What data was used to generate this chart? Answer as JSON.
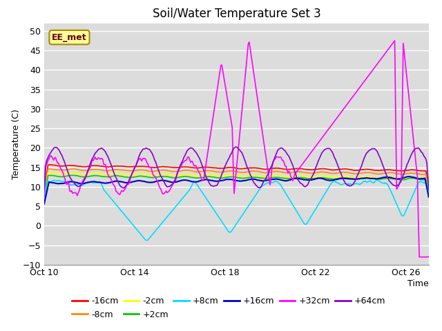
{
  "title": "Soil/Water Temperature Set 3",
  "xlabel": "Time",
  "ylabel": "Temperature (C)",
  "ylim": [
    -10,
    52
  ],
  "yticks": [
    -10,
    -5,
    0,
    5,
    10,
    15,
    20,
    25,
    30,
    35,
    40,
    45,
    50
  ],
  "xlim": [
    0,
    17
  ],
  "xtick_positions": [
    0,
    4,
    8,
    12,
    16
  ],
  "xtick_labels": [
    "Oct 10",
    "Oct 14",
    "Oct 18",
    "Oct 22",
    "Oct 26"
  ],
  "annotation_text": "EE_met",
  "annotation_bg": "#FFFF99",
  "annotation_border": "#AA8800",
  "bg_color": "#DCDCDC",
  "series": {
    "-16cm": {
      "color": "#FF0000",
      "linewidth": 1.2
    },
    "-8cm": {
      "color": "#FF8800",
      "linewidth": 1.2
    },
    "-2cm": {
      "color": "#FFFF00",
      "linewidth": 1.2
    },
    "+2cm": {
      "color": "#00CC00",
      "linewidth": 1.2
    },
    "+8cm": {
      "color": "#00DDFF",
      "linewidth": 1.2
    },
    "+16cm": {
      "color": "#0000CC",
      "linewidth": 1.5
    },
    "+32cm": {
      "color": "#FF00FF",
      "linewidth": 1.2
    },
    "+64cm": {
      "color": "#8800CC",
      "linewidth": 1.2
    }
  },
  "legend_fontsize": 9,
  "title_fontsize": 12
}
